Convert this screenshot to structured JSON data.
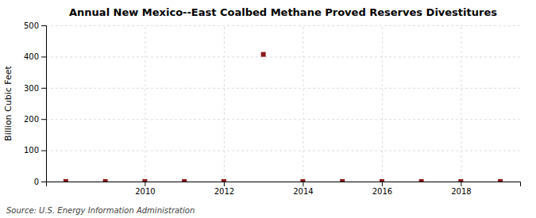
{
  "chart_data": {
    "type": "scatter",
    "title": "Annual New Mexico--East Coalbed Methane Proved Reserves Divestitures",
    "ylabel": "Billion Cubic Feet",
    "annotations": [
      "Source: U.S. Energy Information Administration"
    ],
    "x": [
      2008,
      2009,
      2010,
      2011,
      2012,
      2013,
      2014,
      2015,
      2016,
      2017,
      2018,
      2019
    ],
    "values": [
      0,
      0,
      0,
      0,
      0,
      407,
      0,
      0,
      0,
      0,
      0,
      0
    ],
    "color": "#8b1a1a",
    "marker": "square",
    "xlim": [
      2007.5,
      2019.5
    ],
    "ylim": [
      0,
      500
    ],
    "xticks": [
      2010,
      2012,
      2014,
      2016,
      2018
    ],
    "yticks": [
      0,
      100,
      200,
      300,
      400,
      500
    ],
    "grid": true
  }
}
